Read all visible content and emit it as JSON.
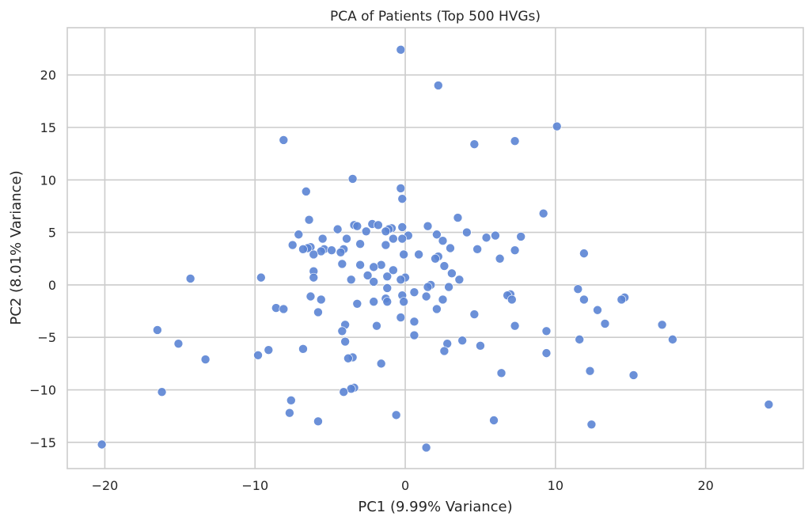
{
  "chart_data": {
    "type": "scatter",
    "title": "PCA of Patients (Top 500 HVGs)",
    "xlabel": "PC1 (9.99% Variance)",
    "ylabel": "PC2 (8.01% Variance)",
    "xlim": [
      -22.5,
      26.5
    ],
    "ylim": [
      -17.5,
      24.5
    ],
    "xticks": [
      -20,
      -10,
      0,
      10,
      20
    ],
    "yticks": [
      -15,
      -10,
      -5,
      0,
      5,
      10,
      15,
      20
    ],
    "grid": true,
    "point_color": "#5b84d4",
    "points": [
      {
        "x": -0.3,
        "y": 22.4
      },
      {
        "x": 2.2,
        "y": 19.0
      },
      {
        "x": 10.1,
        "y": 15.1
      },
      {
        "x": 4.6,
        "y": 13.4
      },
      {
        "x": 7.3,
        "y": 13.7
      },
      {
        "x": -8.1,
        "y": 13.8
      },
      {
        "x": -3.5,
        "y": 10.1
      },
      {
        "x": -0.3,
        "y": 9.2
      },
      {
        "x": -6.6,
        "y": 8.9
      },
      {
        "x": -0.2,
        "y": 8.2
      },
      {
        "x": 9.2,
        "y": 6.8
      },
      {
        "x": 3.5,
        "y": 6.4
      },
      {
        "x": -6.4,
        "y": 6.2
      },
      {
        "x": -2.2,
        "y": 5.8
      },
      {
        "x": -3.4,
        "y": 5.7
      },
      {
        "x": -3.2,
        "y": 5.6
      },
      {
        "x": -1.8,
        "y": 5.7
      },
      {
        "x": 1.5,
        "y": 5.6
      },
      {
        "x": -0.2,
        "y": 5.5
      },
      {
        "x": -4.5,
        "y": 5.3
      },
      {
        "x": -0.9,
        "y": 5.4
      },
      {
        "x": -1.1,
        "y": 5.3
      },
      {
        "x": -1.3,
        "y": 5.1
      },
      {
        "x": -2.6,
        "y": 5.1
      },
      {
        "x": 4.1,
        "y": 5.0
      },
      {
        "x": -7.1,
        "y": 4.8
      },
      {
        "x": 2.1,
        "y": 4.8
      },
      {
        "x": 0.2,
        "y": 4.7
      },
      {
        "x": 6.0,
        "y": 4.7
      },
      {
        "x": 7.7,
        "y": 4.6
      },
      {
        "x": 5.4,
        "y": 4.5
      },
      {
        "x": -0.8,
        "y": 4.4
      },
      {
        "x": -0.2,
        "y": 4.4
      },
      {
        "x": -3.9,
        "y": 4.4
      },
      {
        "x": -5.5,
        "y": 4.4
      },
      {
        "x": 2.5,
        "y": 4.2
      },
      {
        "x": -3.0,
        "y": 3.9
      },
      {
        "x": -7.5,
        "y": 3.8
      },
      {
        "x": -1.3,
        "y": 3.8
      },
      {
        "x": -6.3,
        "y": 3.6
      },
      {
        "x": -6.5,
        "y": 3.5
      },
      {
        "x": -6.8,
        "y": 3.4
      },
      {
        "x": -4.1,
        "y": 3.4
      },
      {
        "x": -5.4,
        "y": 3.4
      },
      {
        "x": -4.9,
        "y": 3.3
      },
      {
        "x": 7.3,
        "y": 3.3
      },
      {
        "x": 3.0,
        "y": 3.5
      },
      {
        "x": -5.6,
        "y": 3.2
      },
      {
        "x": 4.8,
        "y": 3.4
      },
      {
        "x": -4.3,
        "y": 3.1
      },
      {
        "x": 0.9,
        "y": 2.9
      },
      {
        "x": -0.1,
        "y": 2.9
      },
      {
        "x": 11.9,
        "y": 3.0
      },
      {
        "x": -6.1,
        "y": 2.9
      },
      {
        "x": 2.2,
        "y": 2.7
      },
      {
        "x": 2.0,
        "y": 2.5
      },
      {
        "x": 6.3,
        "y": 2.5
      },
      {
        "x": -4.2,
        "y": 2.0
      },
      {
        "x": -3.0,
        "y": 1.9
      },
      {
        "x": -1.6,
        "y": 1.9
      },
      {
        "x": -2.1,
        "y": 1.7
      },
      {
        "x": 2.6,
        "y": 1.8
      },
      {
        "x": -6.1,
        "y": 1.3
      },
      {
        "x": -0.8,
        "y": 1.4
      },
      {
        "x": 3.1,
        "y": 1.1
      },
      {
        "x": -2.5,
        "y": 0.9
      },
      {
        "x": -1.2,
        "y": 0.8
      },
      {
        "x": 0.0,
        "y": 0.7
      },
      {
        "x": -6.1,
        "y": 0.7
      },
      {
        "x": -9.6,
        "y": 0.7
      },
      {
        "x": -14.3,
        "y": 0.6
      },
      {
        "x": 3.6,
        "y": 0.5
      },
      {
        "x": -3.6,
        "y": 0.5
      },
      {
        "x": -0.3,
        "y": 0.5
      },
      {
        "x": -2.1,
        "y": 0.3
      },
      {
        "x": 1.7,
        "y": 0.0
      },
      {
        "x": 1.5,
        "y": -0.2
      },
      {
        "x": 2.9,
        "y": -0.2
      },
      {
        "x": -1.2,
        "y": -0.3
      },
      {
        "x": 11.5,
        "y": -0.4
      },
      {
        "x": 0.6,
        "y": -0.7
      },
      {
        "x": 7.0,
        "y": -0.9
      },
      {
        "x": 6.8,
        "y": -1.0
      },
      {
        "x": -6.3,
        "y": -1.1
      },
      {
        "x": 1.4,
        "y": -1.1
      },
      {
        "x": -0.2,
        "y": -1.0
      },
      {
        "x": -1.3,
        "y": -1.3
      },
      {
        "x": 14.6,
        "y": -1.2
      },
      {
        "x": 14.4,
        "y": -1.4
      },
      {
        "x": 11.9,
        "y": -1.4
      },
      {
        "x": 7.1,
        "y": -1.4
      },
      {
        "x": -5.6,
        "y": -1.4
      },
      {
        "x": -2.1,
        "y": -1.6
      },
      {
        "x": -1.2,
        "y": -1.6
      },
      {
        "x": -0.1,
        "y": -1.6
      },
      {
        "x": 2.5,
        "y": -1.4
      },
      {
        "x": -3.2,
        "y": -1.8
      },
      {
        "x": -8.6,
        "y": -2.2
      },
      {
        "x": -8.1,
        "y": -2.3
      },
      {
        "x": 2.1,
        "y": -2.3
      },
      {
        "x": 12.8,
        "y": -2.4
      },
      {
        "x": -5.8,
        "y": -2.6
      },
      {
        "x": 4.6,
        "y": -2.8
      },
      {
        "x": -0.3,
        "y": -3.1
      },
      {
        "x": 0.6,
        "y": -3.5
      },
      {
        "x": 13.3,
        "y": -3.7
      },
      {
        "x": -4.0,
        "y": -3.8
      },
      {
        "x": -1.9,
        "y": -3.9
      },
      {
        "x": 7.3,
        "y": -3.9
      },
      {
        "x": 17.1,
        "y": -3.8
      },
      {
        "x": -16.5,
        "y": -4.3
      },
      {
        "x": -4.2,
        "y": -4.4
      },
      {
        "x": 9.4,
        "y": -4.4
      },
      {
        "x": 0.6,
        "y": -4.8
      },
      {
        "x": 17.8,
        "y": -5.2
      },
      {
        "x": 11.6,
        "y": -5.2
      },
      {
        "x": 3.8,
        "y": -5.3
      },
      {
        "x": -4.0,
        "y": -5.4
      },
      {
        "x": -15.1,
        "y": -5.6
      },
      {
        "x": 2.8,
        "y": -5.6
      },
      {
        "x": 5.0,
        "y": -5.8
      },
      {
        "x": -6.8,
        "y": -6.1
      },
      {
        "x": -9.1,
        "y": -6.2
      },
      {
        "x": 2.6,
        "y": -6.3
      },
      {
        "x": 9.4,
        "y": -6.5
      },
      {
        "x": -9.8,
        "y": -6.7
      },
      {
        "x": -3.5,
        "y": -6.9
      },
      {
        "x": -3.8,
        "y": -7.0
      },
      {
        "x": -13.3,
        "y": -7.1
      },
      {
        "x": -1.6,
        "y": -7.5
      },
      {
        "x": 12.3,
        "y": -8.2
      },
      {
        "x": 6.4,
        "y": -8.4
      },
      {
        "x": 15.2,
        "y": -8.6
      },
      {
        "x": -3.4,
        "y": -9.8
      },
      {
        "x": -3.6,
        "y": -9.9
      },
      {
        "x": -4.1,
        "y": -10.2
      },
      {
        "x": -16.2,
        "y": -10.2
      },
      {
        "x": -7.6,
        "y": -11.0
      },
      {
        "x": 24.2,
        "y": -11.4
      },
      {
        "x": -7.7,
        "y": -12.2
      },
      {
        "x": -0.6,
        "y": -12.4
      },
      {
        "x": -5.8,
        "y": -13.0
      },
      {
        "x": 5.9,
        "y": -12.9
      },
      {
        "x": 12.4,
        "y": -13.3
      },
      {
        "x": -20.2,
        "y": -15.2
      },
      {
        "x": 1.4,
        "y": -15.5
      }
    ]
  }
}
